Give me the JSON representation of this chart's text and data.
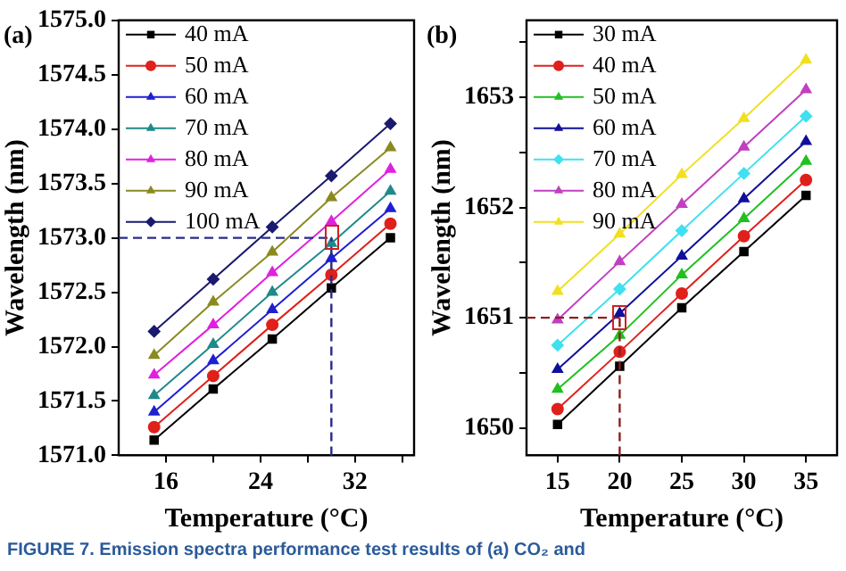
{
  "chart_data": [
    {
      "type": "line",
      "title": "(a)",
      "xlabel": "Temperature (°C)",
      "ylabel": "Wavelength (nm)",
      "x": [
        15,
        20,
        25,
        30,
        35
      ],
      "xlim": [
        12,
        37
      ],
      "xticks": [
        {
          "value": 16,
          "label": "16"
        },
        {
          "value": 20,
          "label": null
        },
        {
          "value": 24,
          "label": "24"
        },
        {
          "value": 28,
          "label": null
        },
        {
          "value": 32,
          "label": "32"
        },
        {
          "value": 36,
          "label": null
        }
      ],
      "ylim": [
        1571,
        1575
      ],
      "yticks": [
        {
          "value": 1571,
          "label": "1571.0"
        },
        {
          "value": 1571.5,
          "label": "1571.5"
        },
        {
          "value": 1572,
          "label": "1572.0"
        },
        {
          "value": 1572.5,
          "label": "1572.5"
        },
        {
          "value": 1573,
          "label": "1573.0"
        },
        {
          "value": 1573.5,
          "label": "1573.5"
        },
        {
          "value": 1574,
          "label": "1574.0"
        },
        {
          "value": 1574.5,
          "label": "1574.5"
        },
        {
          "value": 1575,
          "label": "1575.0"
        }
      ],
      "grid": false,
      "legend": "top left",
      "line_style": "solid",
      "series": [
        {
          "name": "40 mA",
          "color": "#000000",
          "marker": "square",
          "values": [
            1571.14,
            1571.61,
            1572.07,
            1572.54,
            1573.0
          ]
        },
        {
          "name": "50 mA",
          "color": "#e0201b",
          "marker": "circle",
          "values": [
            1571.26,
            1571.73,
            1572.2,
            1572.66,
            1573.13
          ]
        },
        {
          "name": "60 mA",
          "color": "#1f1fd0",
          "marker": "triangle",
          "values": [
            1571.4,
            1571.87,
            1572.34,
            1572.81,
            1573.27
          ]
        },
        {
          "name": "70 mA",
          "color": "#1f8a8a",
          "marker": "triangle",
          "values": [
            1571.55,
            1572.02,
            1572.5,
            1572.95,
            1573.43
          ]
        },
        {
          "name": "80 mA",
          "color": "#e020e0",
          "marker": "triangle",
          "values": [
            1571.74,
            1572.2,
            1572.68,
            1573.15,
            1573.63
          ]
        },
        {
          "name": "90 mA",
          "color": "#8a8a20",
          "marker": "triangle",
          "values": [
            1571.92,
            1572.41,
            1572.87,
            1573.37,
            1573.83
          ]
        },
        {
          "name": "100 mA",
          "color": "#1a1a6e",
          "marker": "diamond",
          "values": [
            1572.14,
            1572.62,
            1573.1,
            1573.57,
            1574.05
          ]
        }
      ],
      "ref_lines": [
        {
          "axis": "y",
          "value": 1573,
          "color": "#2a2a8a",
          "line_style": "dashed"
        },
        {
          "axis": "x",
          "value": 30,
          "color": "#2a2a8a",
          "line_style": "dashed"
        }
      ],
      "annotations": [
        "FIGURE 7. Emission spectra performance test results of (a) CO₂ and"
      ]
    },
    {
      "type": "line",
      "title": "(b)",
      "xlabel": "Temperature (°C)",
      "ylabel": "Wavelength (nm)",
      "x": [
        15,
        20,
        25,
        30,
        35
      ],
      "xlim": [
        12.5,
        37.5
      ],
      "xticks": [
        15,
        20,
        25,
        30,
        35
      ],
      "ylim": [
        1649.75,
        1653.7
      ],
      "yticks": [
        1650,
        {
          "value": 1650.5,
          "label": null
        },
        1651,
        {
          "value": 1651.5,
          "label": null
        },
        1652,
        {
          "value": 1652.5,
          "label": null
        },
        1653,
        {
          "value": 1653.5,
          "label": null
        }
      ],
      "grid": false,
      "legend": "top left",
      "line_style": "solid",
      "series": [
        {
          "name": "30 mA",
          "color": "#000000",
          "marker": "square",
          "values": [
            1650.03,
            1650.56,
            1651.09,
            1651.6,
            1652.11
          ]
        },
        {
          "name": "40 mA",
          "color": "#e0201b",
          "marker": "circle",
          "values": [
            1650.17,
            1650.69,
            1651.22,
            1651.74,
            1652.25
          ]
        },
        {
          "name": "50 mA",
          "color": "#20c020",
          "marker": "triangle",
          "values": [
            1650.35,
            1650.84,
            1651.39,
            1651.9,
            1652.42
          ]
        },
        {
          "name": "60 mA",
          "color": "#10109a",
          "marker": "triangle",
          "values": [
            1650.53,
            1651.04,
            1651.56,
            1652.08,
            1652.6
          ]
        },
        {
          "name": "70 mA",
          "color": "#40e0f0",
          "marker": "diamond",
          "values": [
            1650.75,
            1651.26,
            1651.79,
            1652.31,
            1652.83
          ]
        },
        {
          "name": "80 mA",
          "color": "#c040c0",
          "marker": "triangle",
          "values": [
            1650.98,
            1651.51,
            1652.03,
            1652.55,
            1653.07
          ]
        },
        {
          "name": "90 mA",
          "color": "#f0e020",
          "marker": "triangle",
          "values": [
            1651.24,
            1651.76,
            1652.3,
            1652.81,
            1653.34
          ]
        }
      ],
      "ref_lines": [
        {
          "axis": "y",
          "value": 1651,
          "color": "#8a2020",
          "line_style": "dashed"
        },
        {
          "axis": "x",
          "value": 20,
          "color": "#8a2020",
          "line_style": "dashed"
        }
      ]
    }
  ]
}
